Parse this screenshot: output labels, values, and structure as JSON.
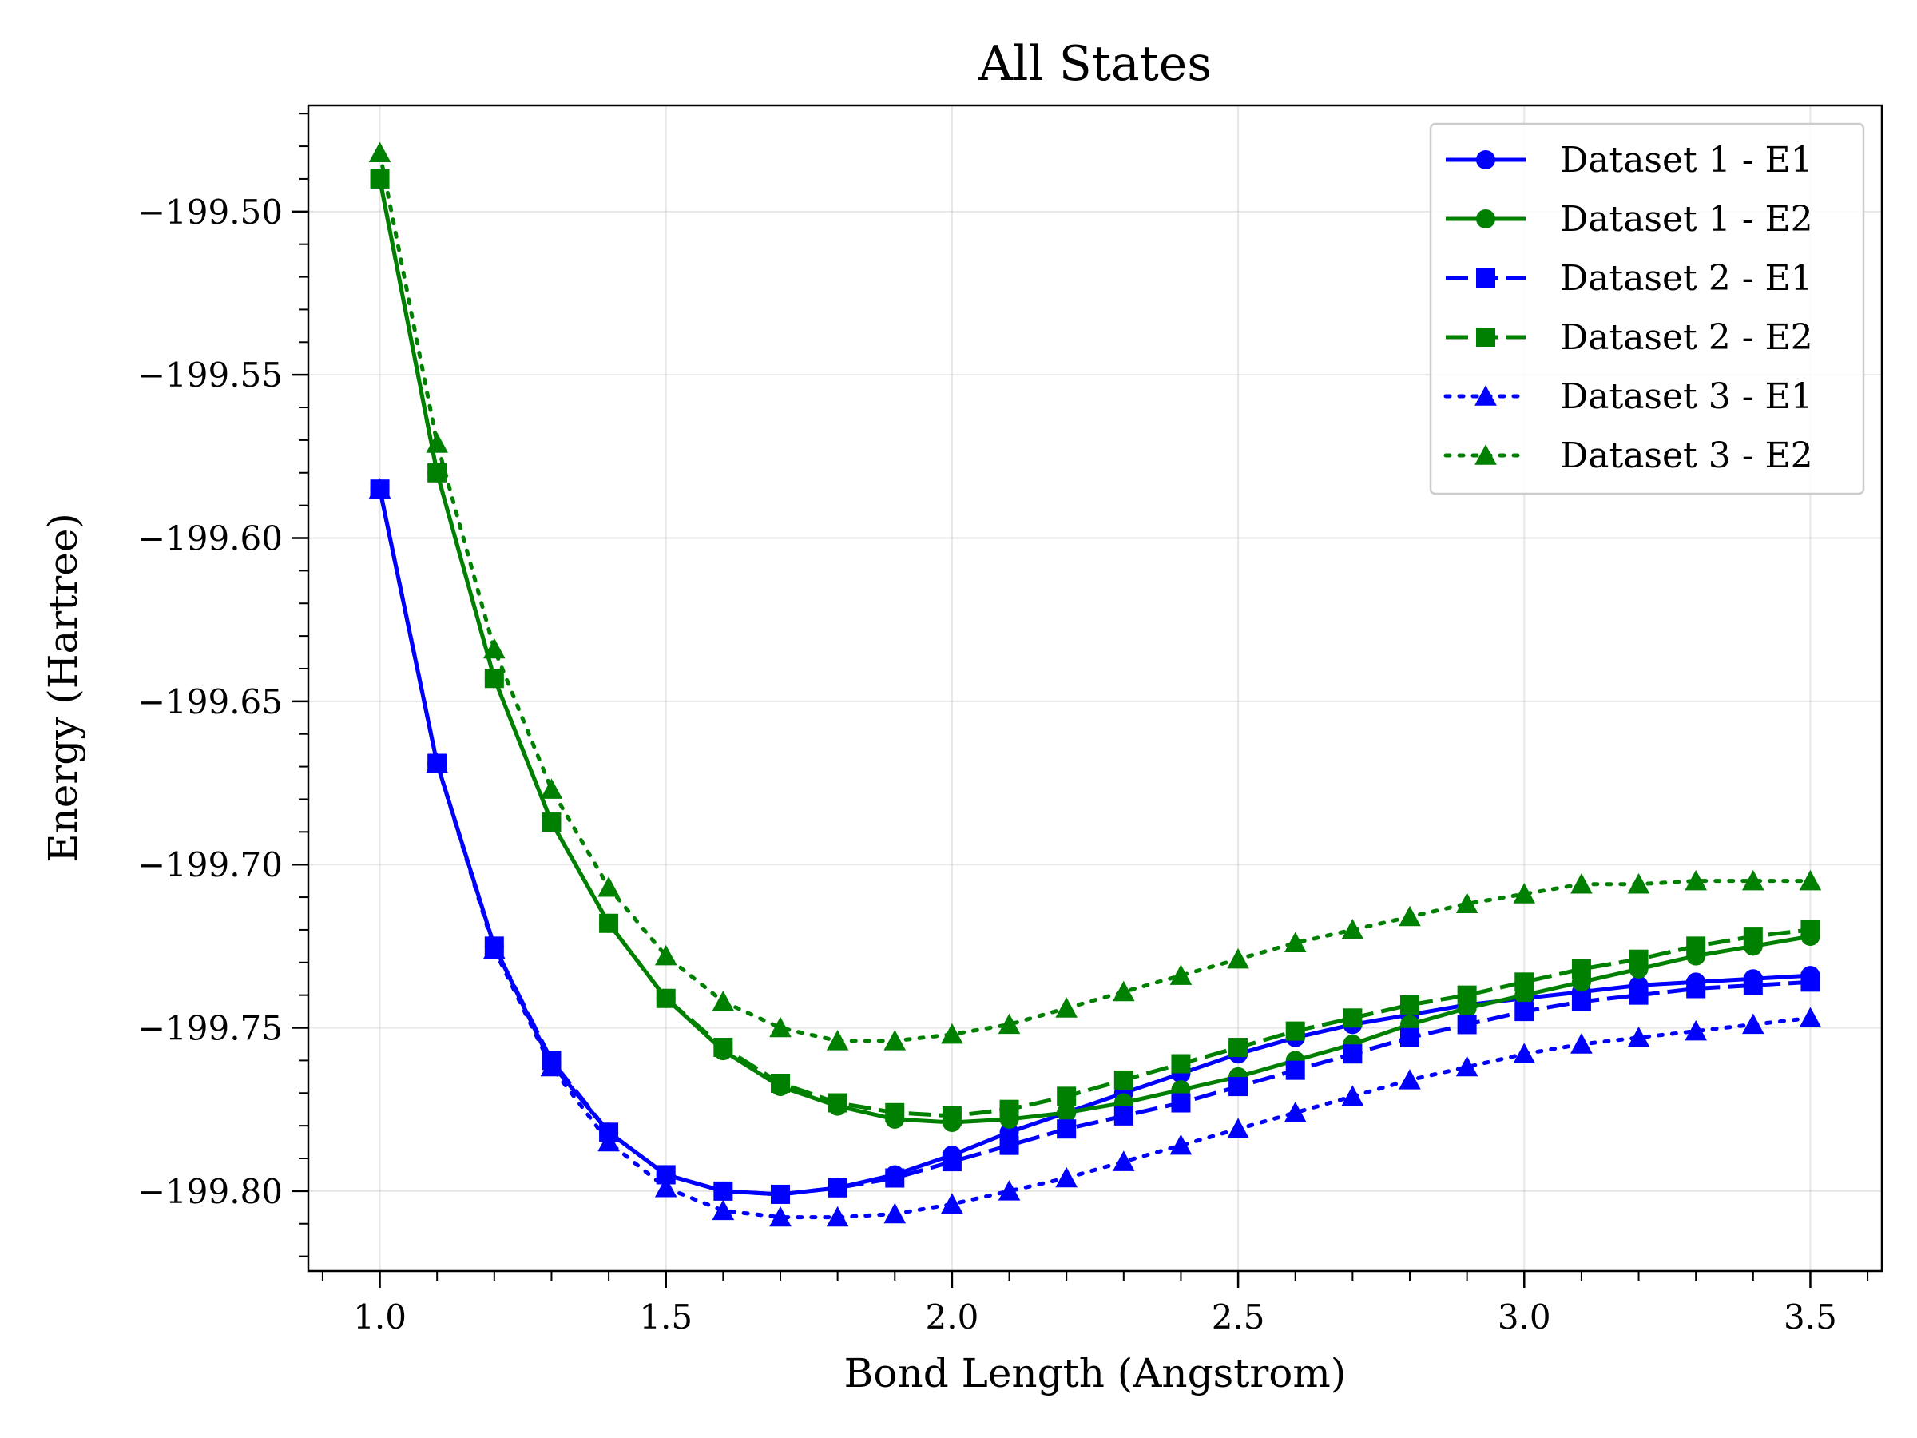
{
  "chart_data": {
    "type": "line",
    "title": "All States",
    "xlabel": "Bond Length (Angstrom)",
    "ylabel": "Energy (Hartree)",
    "xlim": [
      0.875,
      3.625
    ],
    "ylim": [
      -199.8245,
      -199.4675
    ],
    "xticks": [
      1.0,
      1.5,
      2.0,
      2.5,
      3.0,
      3.5
    ],
    "xtick_labels": [
      "1.0",
      "1.5",
      "2.0",
      "2.5",
      "3.0",
      "3.5"
    ],
    "yticks": [
      -199.8,
      -199.75,
      -199.7,
      -199.65,
      -199.6,
      -199.55,
      -199.5
    ],
    "ytick_labels": [
      "−199.80",
      "−199.75",
      "−199.70",
      "−199.65",
      "−199.60",
      "−199.55",
      "−199.50"
    ],
    "grid": true,
    "legend_position": "top-right",
    "x": [
      1.0,
      1.1,
      1.2,
      1.3,
      1.4,
      1.5,
      1.6,
      1.7,
      1.8,
      1.9,
      2.0,
      2.1,
      2.2,
      2.3,
      2.4,
      2.5,
      2.6,
      2.7,
      2.8,
      2.9,
      3.0,
      3.1,
      3.2,
      3.3,
      3.4,
      3.5
    ],
    "series": [
      {
        "name": "Dataset 1 - E1",
        "color": "#0000ff",
        "dash": "solid",
        "marker": "circle",
        "values": [
          -199.585,
          -199.669,
          -199.725,
          -199.761,
          -199.782,
          -199.795,
          -199.8,
          -199.801,
          -199.799,
          -199.795,
          -199.789,
          -199.782,
          -199.776,
          -199.77,
          -199.764,
          -199.758,
          -199.753,
          -199.749,
          -199.746,
          -199.743,
          -199.741,
          -199.739,
          -199.737,
          -199.736,
          -199.735,
          -199.734
        ]
      },
      {
        "name": "Dataset 1 - E2",
        "color": "#008000",
        "dash": "solid",
        "marker": "circle",
        "values": [
          -199.49,
          -199.58,
          -199.643,
          -199.687,
          -199.718,
          -199.741,
          -199.757,
          -199.768,
          -199.774,
          -199.778,
          -199.779,
          -199.778,
          -199.776,
          -199.773,
          -199.769,
          -199.765,
          -199.76,
          -199.755,
          -199.749,
          -199.744,
          -199.74,
          -199.736,
          -199.732,
          -199.728,
          -199.725,
          -199.722
        ]
      },
      {
        "name": "Dataset 2 - E1",
        "color": "#0000ff",
        "dash": "dashed",
        "marker": "square",
        "values": [
          -199.585,
          -199.669,
          -199.725,
          -199.76,
          -199.782,
          -199.795,
          -199.8,
          -199.801,
          -199.799,
          -199.796,
          -199.791,
          -199.786,
          -199.781,
          -199.777,
          -199.773,
          -199.768,
          -199.763,
          -199.758,
          -199.753,
          -199.749,
          -199.745,
          -199.742,
          -199.74,
          -199.738,
          -199.737,
          -199.736
        ]
      },
      {
        "name": "Dataset 2 - E2",
        "color": "#008000",
        "dash": "dashed",
        "marker": "square",
        "values": [
          -199.49,
          -199.58,
          -199.643,
          -199.687,
          -199.718,
          -199.741,
          -199.756,
          -199.767,
          -199.773,
          -199.776,
          -199.777,
          -199.775,
          -199.771,
          -199.766,
          -199.761,
          -199.756,
          -199.751,
          -199.747,
          -199.743,
          -199.74,
          -199.736,
          -199.732,
          -199.729,
          -199.725,
          -199.722,
          -199.72
        ]
      },
      {
        "name": "Dataset 3 - E1",
        "color": "#0000ff",
        "dash": "dotted",
        "marker": "triangle",
        "values": [
          -199.585,
          -199.669,
          -199.726,
          -199.762,
          -199.785,
          -199.799,
          -199.806,
          -199.808,
          -199.808,
          -199.807,
          -199.804,
          -199.8,
          -199.796,
          -199.791,
          -199.786,
          -199.781,
          -199.776,
          -199.771,
          -199.766,
          -199.762,
          -199.758,
          -199.755,
          -199.753,
          -199.751,
          -199.749,
          -199.747
        ]
      },
      {
        "name": "Dataset 3 - E2",
        "color": "#008000",
        "dash": "dotted",
        "marker": "triangle",
        "values": [
          -199.482,
          -199.571,
          -199.634,
          -199.677,
          -199.707,
          -199.728,
          -199.742,
          -199.75,
          -199.754,
          -199.754,
          -199.752,
          -199.749,
          -199.744,
          -199.739,
          -199.734,
          -199.729,
          -199.724,
          -199.72,
          -199.716,
          -199.712,
          -199.709,
          -199.706,
          -199.706,
          -199.705,
          -199.705,
          -199.705
        ]
      }
    ]
  }
}
